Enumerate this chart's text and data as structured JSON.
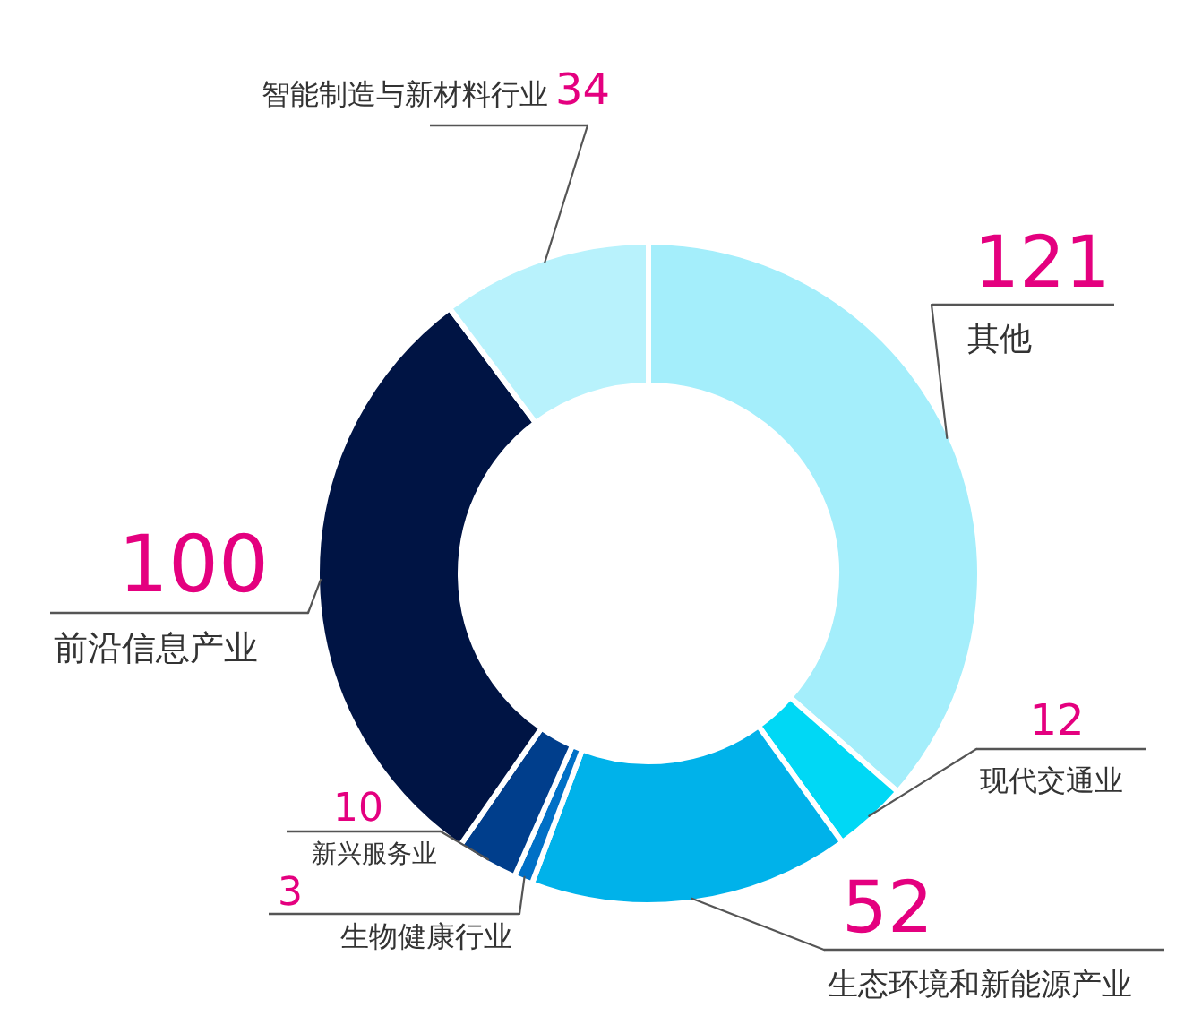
{
  "chart_data": {
    "type": "donut",
    "categories": [
      "其他",
      "现代交通业",
      "生态环境和新能源产业",
      "生物健康行业",
      "新兴服务业",
      "前沿信息产业",
      "智能制造与新材料行业"
    ],
    "values": [
      121,
      12,
      52,
      3,
      10,
      100,
      34
    ],
    "colors": [
      "#a4eefb",
      "#00d8f5",
      "#00b2ea",
      "#0070c6",
      "#003e8c",
      "#001444",
      "#b8f2fc"
    ],
    "data_labels": true
  }
}
